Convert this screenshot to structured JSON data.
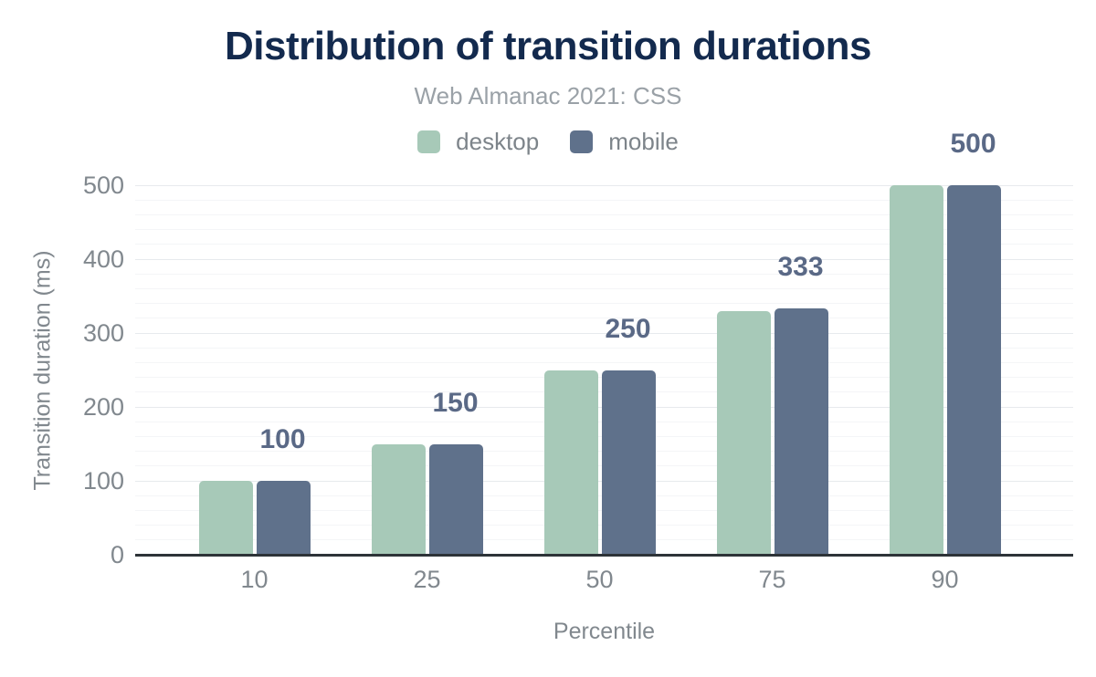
{
  "chart_data": {
    "type": "bar",
    "title": "Distribution of transition durations",
    "subtitle": "Web Almanac 2021: CSS",
    "xlabel": "Percentile",
    "ylabel": "Transition duration (ms)",
    "categories": [
      "10",
      "25",
      "50",
      "75",
      "90"
    ],
    "series": [
      {
        "name": "desktop",
        "color": "#a7c9b8",
        "values": [
          100,
          150,
          250,
          330,
          500
        ]
      },
      {
        "name": "mobile",
        "color": "#5f718b",
        "values": [
          100,
          150,
          250,
          333,
          500
        ]
      }
    ],
    "bar_value_labels": [
      "100",
      "150",
      "250",
      "333",
      "500"
    ],
    "ylim": [
      0,
      500
    ],
    "yticks": [
      0,
      100,
      200,
      300,
      400,
      500
    ],
    "minor_grid_step": 20,
    "legend_position": "top",
    "grid": "horizontal",
    "colors": {
      "title": "#132a4e",
      "subtitle": "#9aa1a7",
      "axis_text": "#81888e",
      "value_label": "#5a6986",
      "axis_line": "#2d3338",
      "grid_major": "#e7eaed",
      "grid_minor": "#f4f5f7"
    }
  }
}
